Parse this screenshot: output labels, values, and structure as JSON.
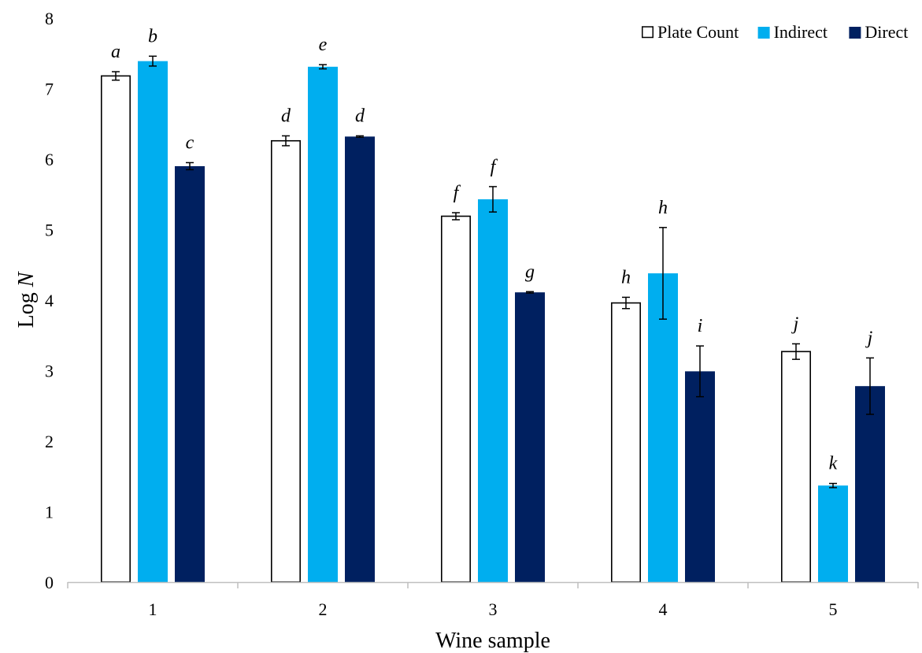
{
  "chart_data": {
    "type": "bar",
    "title": "",
    "xlabel": "Wine sample",
    "ylabel_prefix": "Log ",
    "ylabel_var": "N",
    "ylim": [
      0,
      8
    ],
    "yticks": [
      "0",
      "1",
      "2",
      "3",
      "4",
      "5",
      "6",
      "7",
      "8"
    ],
    "categories": [
      "1",
      "2",
      "3",
      "4",
      "5"
    ],
    "legend_position": "top-right",
    "grid": false,
    "series": [
      {
        "name": "Plate Count",
        "color": "#ffffff",
        "stroke": "#000000",
        "values": [
          7.18,
          6.26,
          5.19,
          3.96,
          3.27
        ],
        "errors": [
          0.06,
          0.07,
          0.05,
          0.08,
          0.11
        ],
        "letters": [
          "a",
          "d",
          "f",
          "h",
          "j"
        ]
      },
      {
        "name": "Indirect",
        "color": "#00aeef",
        "stroke": "#00aeef",
        "values": [
          7.39,
          7.31,
          5.43,
          4.38,
          1.37
        ],
        "errors": [
          0.07,
          0.03,
          0.18,
          0.65,
          0.03
        ],
        "letters": [
          "b",
          "e",
          "f",
          "h",
          "k"
        ]
      },
      {
        "name": "Direct",
        "color": "#002060",
        "stroke": "#002060",
        "values": [
          5.9,
          6.32,
          4.11,
          2.99,
          2.78
        ],
        "errors": [
          0.05,
          0.01,
          0.01,
          0.36,
          0.4
        ],
        "letters": [
          "c",
          "d",
          "g",
          "i",
          "j"
        ]
      }
    ]
  }
}
